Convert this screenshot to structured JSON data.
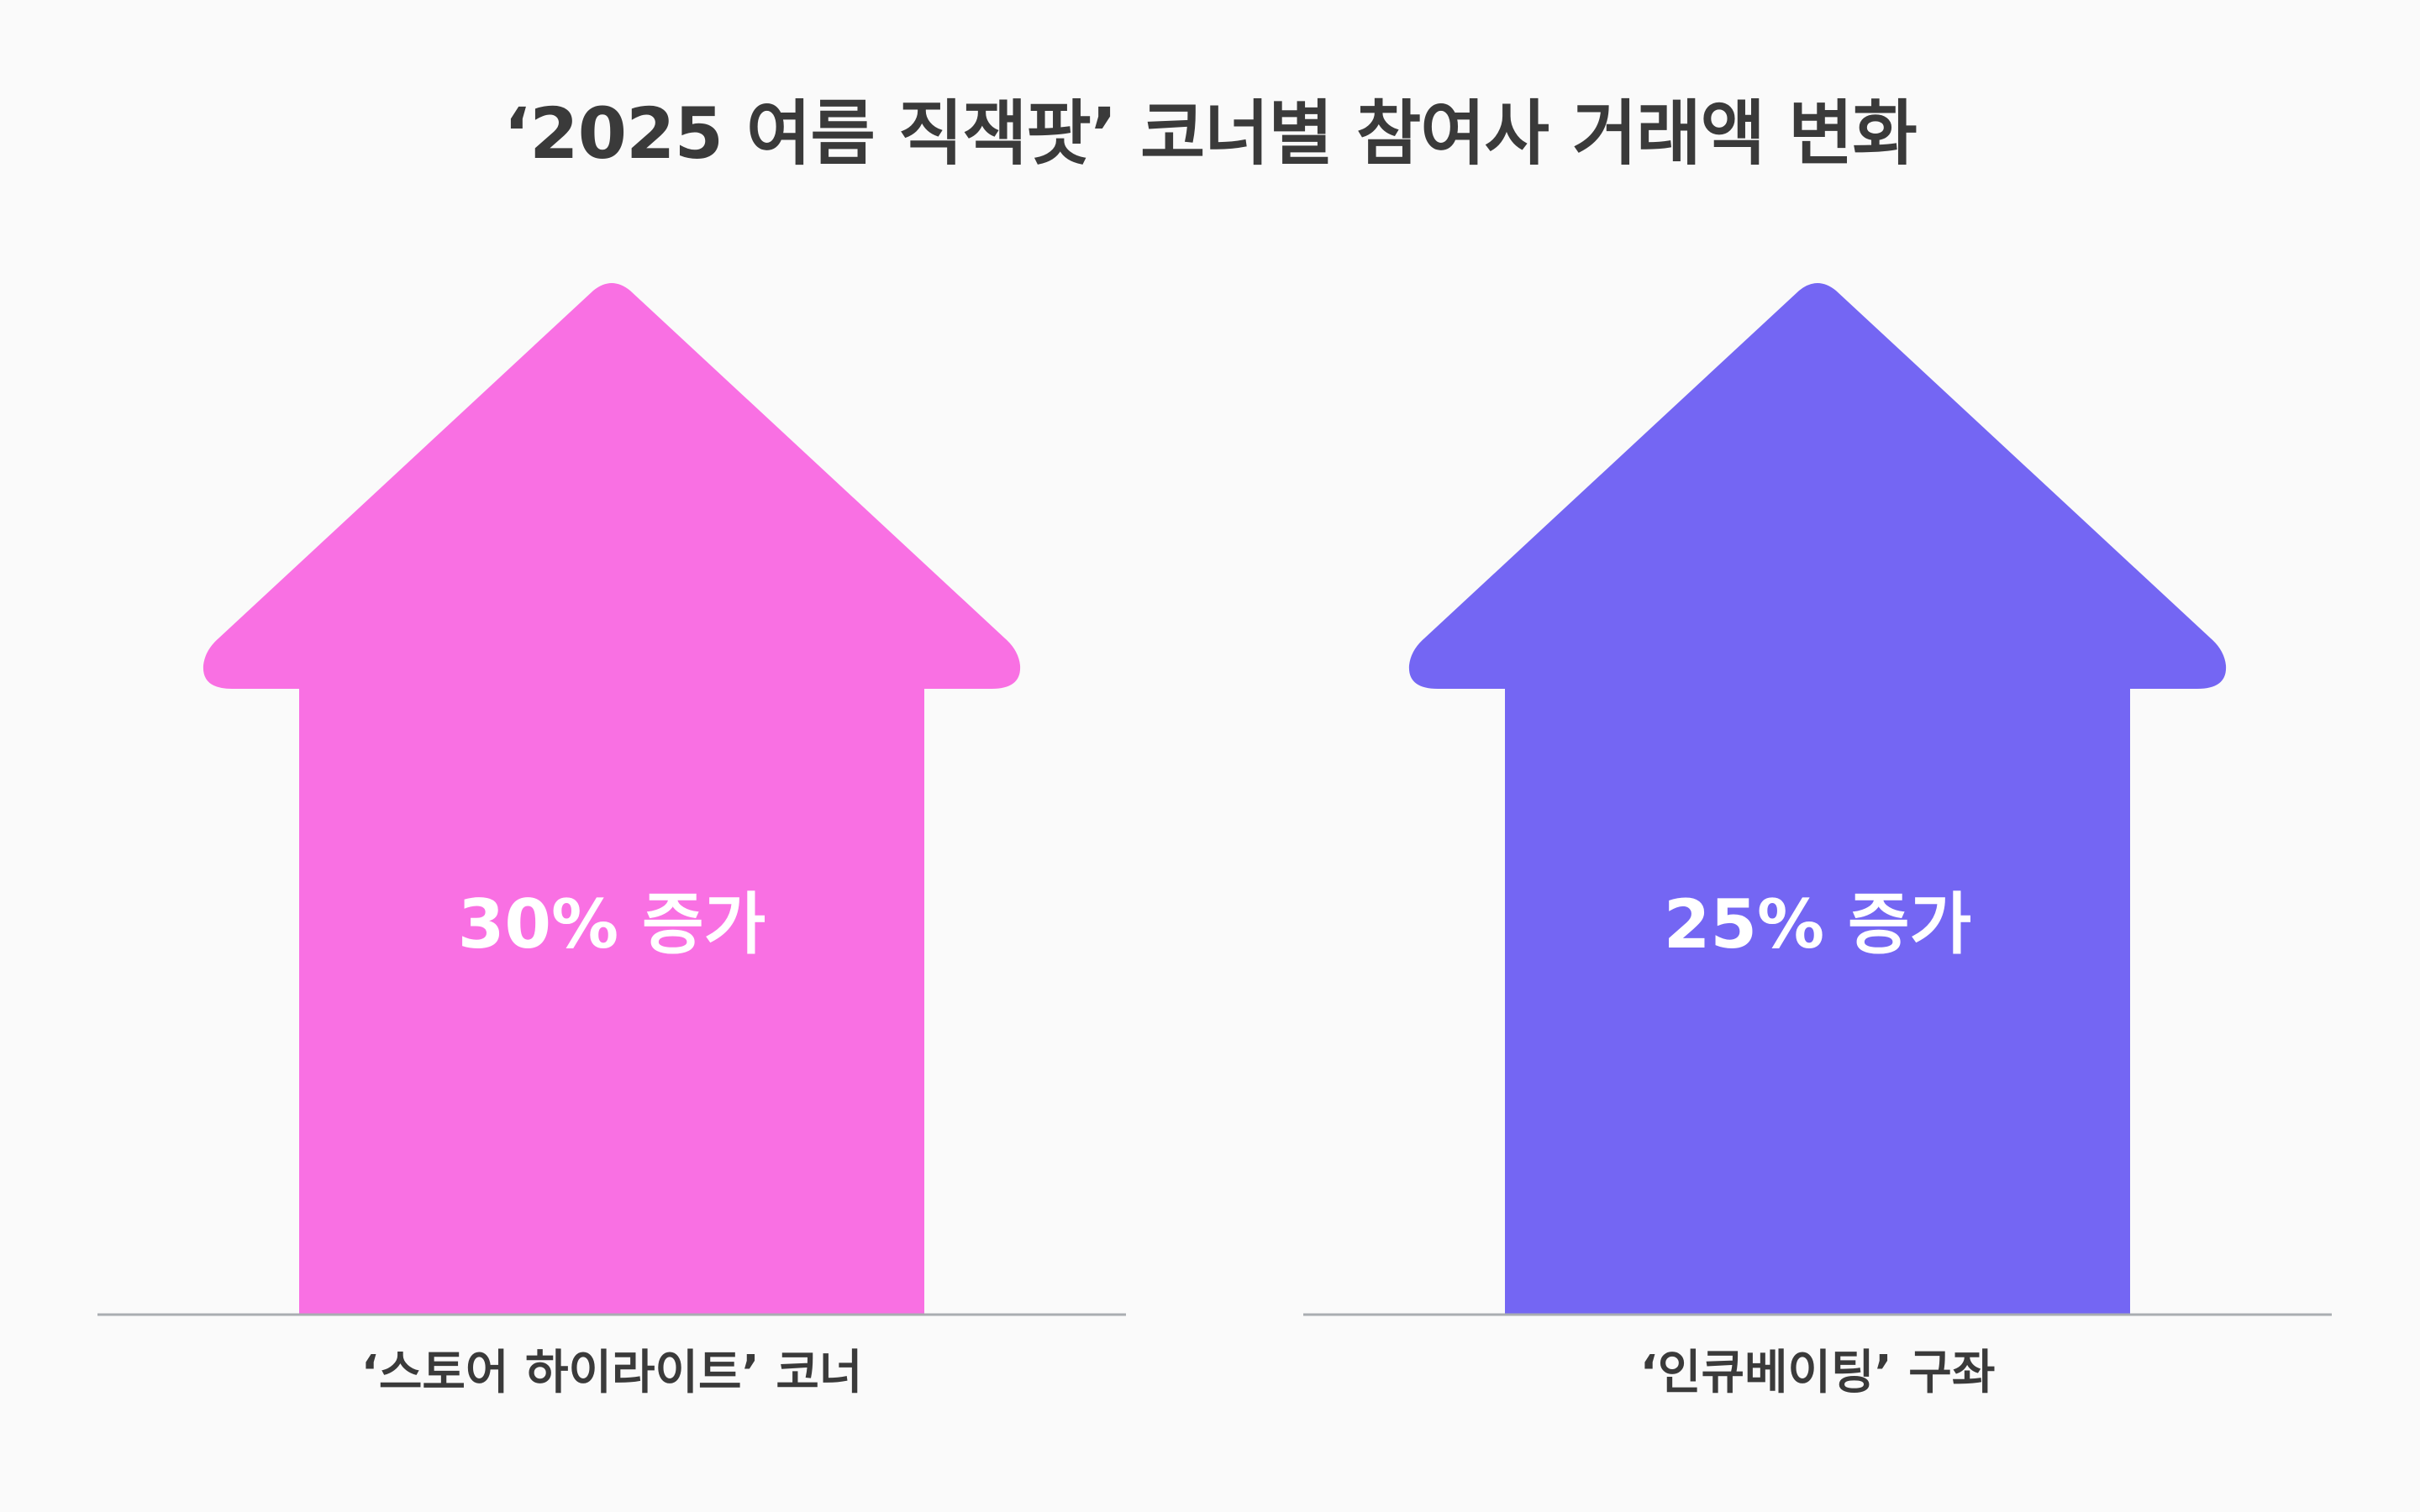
{
  "chart_data": {
    "type": "bar",
    "title": "‘2025 여름 직잭팟’ 코너별 참여사 거래액 변화",
    "categories": [
      "‘스토어 하이라이트’ 코너",
      "‘인큐베이팅’ 구좌"
    ],
    "values": [
      30,
      25
    ],
    "value_labels": [
      "30% 증가",
      "25% 증가"
    ],
    "unit": "%",
    "colors": [
      "#f970e3",
      "#7466f3"
    ],
    "marker": "up-arrow",
    "axis_color": "#a9adb1"
  }
}
